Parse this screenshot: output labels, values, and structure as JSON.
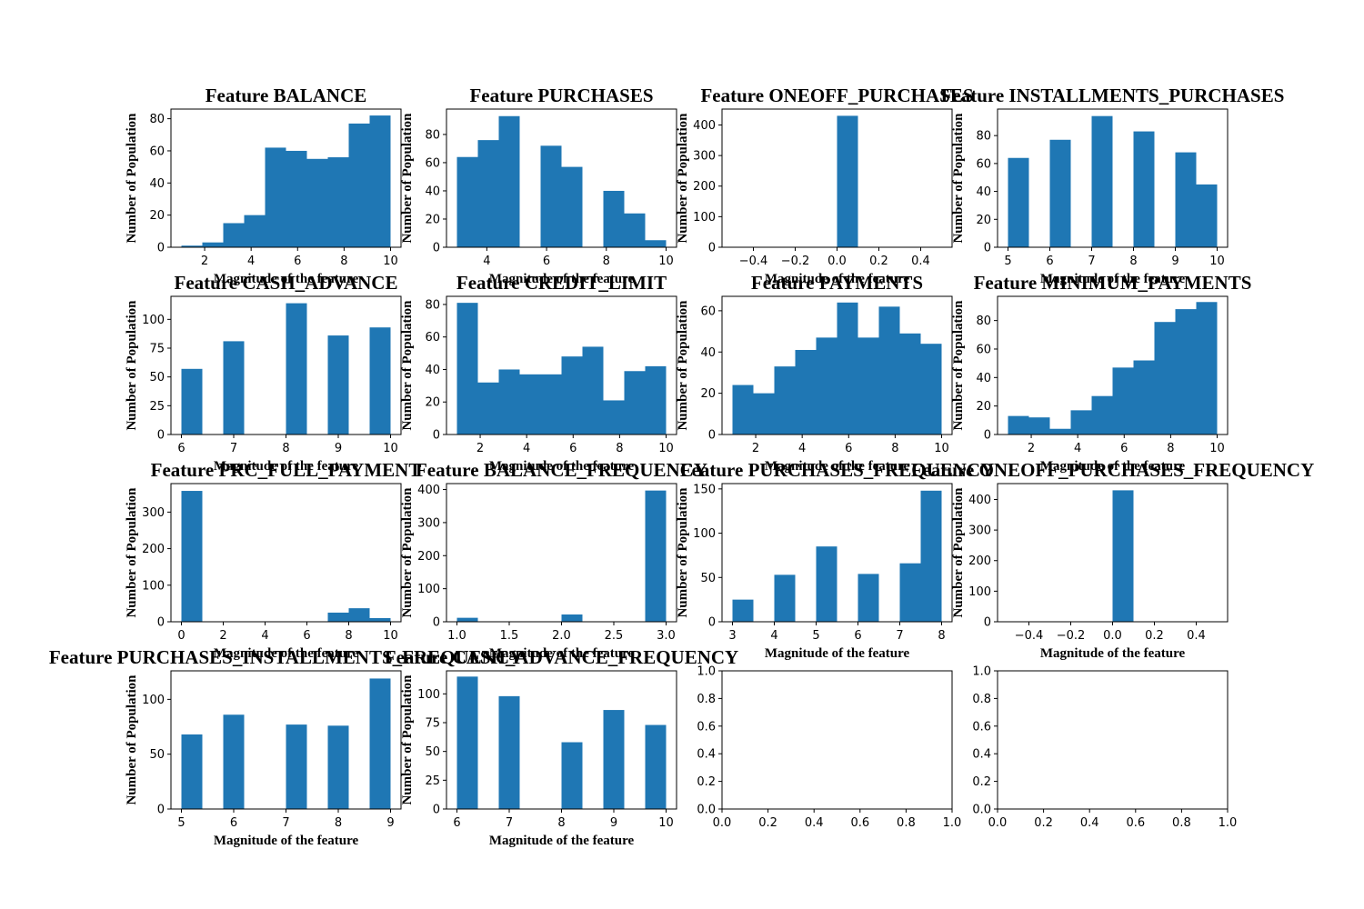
{
  "figure": {
    "bar_color": "#1f77b4",
    "background": "#ffffff"
  },
  "chart_data": [
    {
      "type": "bar",
      "title": "Feature BALANCE",
      "xlabel": "Magnitude of the feature",
      "ylabel": "Number of Population",
      "xlim": [
        0.55,
        10.45
      ],
      "ylim": [
        0,
        86
      ],
      "xticks": [
        2,
        4,
        6,
        8,
        10
      ],
      "yticks": [
        0,
        20,
        40,
        60,
        80
      ],
      "bars": [
        [
          1,
          1.9,
          1
        ],
        [
          1.9,
          2.8,
          3
        ],
        [
          2.8,
          3.7,
          15
        ],
        [
          3.7,
          4.6,
          20
        ],
        [
          4.6,
          5.5,
          62
        ],
        [
          5.5,
          6.4,
          60
        ],
        [
          6.4,
          7.3,
          55
        ],
        [
          7.3,
          8.2,
          56
        ],
        [
          8.2,
          9.1,
          77
        ],
        [
          9.1,
          10,
          82
        ]
      ]
    },
    {
      "type": "bar",
      "title": "Feature PURCHASES",
      "xlabel": "Magnitude of the feature",
      "ylabel": "Number of Population",
      "xlim": [
        2.65,
        10.35
      ],
      "ylim": [
        0,
        98
      ],
      "xticks": [
        4,
        6,
        8,
        10
      ],
      "yticks": [
        0,
        20,
        40,
        60,
        80
      ],
      "bars": [
        [
          3,
          3.7,
          64
        ],
        [
          3.7,
          4.4,
          76
        ],
        [
          4.4,
          5.1,
          93
        ],
        [
          5.1,
          5.8,
          0
        ],
        [
          5.8,
          6.5,
          72
        ],
        [
          6.5,
          7.2,
          57
        ],
        [
          7.2,
          7.9,
          0
        ],
        [
          7.9,
          8.6,
          40
        ],
        [
          8.6,
          9.3,
          24
        ],
        [
          9.3,
          10,
          5
        ]
      ]
    },
    {
      "type": "bar",
      "title": "Feature ONEOFF_PURCHASES",
      "xlabel": "Magnitude of the feature",
      "ylabel": "Number of Population",
      "xlim": [
        -0.55,
        0.55
      ],
      "ylim": [
        0,
        452
      ],
      "xticks": [
        -0.4,
        -0.2,
        0.0,
        0.2,
        0.4
      ],
      "yticks": [
        0,
        100,
        200,
        300,
        400
      ],
      "bars": [
        [
          0,
          0.1,
          430
        ]
      ]
    },
    {
      "type": "bar",
      "title": "Feature INSTALLMENTS_PURCHASES",
      "xlabel": "Magnitude of the feature",
      "ylabel": "Number of Population",
      "xlim": [
        4.75,
        10.25
      ],
      "ylim": [
        0,
        99
      ],
      "xticks": [
        5,
        6,
        7,
        8,
        9,
        10
      ],
      "yticks": [
        0,
        20,
        40,
        60,
        80
      ],
      "bars": [
        [
          5,
          5.5,
          64
        ],
        [
          5.5,
          6,
          0
        ],
        [
          6,
          6.5,
          77
        ],
        [
          6.5,
          7,
          0
        ],
        [
          7,
          7.5,
          94
        ],
        [
          7.5,
          8,
          0
        ],
        [
          8,
          8.5,
          83
        ],
        [
          8.5,
          9,
          0
        ],
        [
          9,
          9.5,
          68
        ],
        [
          9.5,
          10,
          45
        ]
      ]
    },
    {
      "type": "bar",
      "title": "Feature CASH_ADVANCE",
      "xlabel": "Magnitude of the feature",
      "ylabel": "Number of Population",
      "xlim": [
        5.8,
        10.2
      ],
      "ylim": [
        0,
        120
      ],
      "xticks": [
        6,
        7,
        8,
        9,
        10
      ],
      "yticks": [
        0,
        25,
        50,
        75,
        100
      ],
      "bars": [
        [
          6,
          6.4,
          57
        ],
        [
          6.4,
          6.8,
          0
        ],
        [
          6.8,
          7.2,
          81
        ],
        [
          7.2,
          7.6,
          0
        ],
        [
          7.6,
          8,
          0
        ],
        [
          8,
          8.4,
          114
        ],
        [
          8.4,
          8.8,
          0
        ],
        [
          8.8,
          9.2,
          86
        ],
        [
          9.2,
          9.6,
          0
        ],
        [
          9.6,
          10,
          93
        ]
      ]
    },
    {
      "type": "bar",
      "title": "Feature CREDIT_LIMIT",
      "xlabel": "Magnitude of the feature",
      "ylabel": "Number of Population",
      "xlim": [
        0.55,
        10.45
      ],
      "ylim": [
        0,
        85
      ],
      "xticks": [
        2,
        4,
        6,
        8,
        10
      ],
      "yticks": [
        0,
        20,
        40,
        60,
        80
      ],
      "bars": [
        [
          1,
          1.9,
          81
        ],
        [
          1.9,
          2.8,
          32
        ],
        [
          2.8,
          3.7,
          40
        ],
        [
          3.7,
          4.6,
          37
        ],
        [
          4.6,
          5.5,
          37
        ],
        [
          5.5,
          6.4,
          48
        ],
        [
          6.4,
          7.3,
          54
        ],
        [
          7.3,
          8.2,
          21
        ],
        [
          8.2,
          9.1,
          39
        ],
        [
          9.1,
          10,
          42
        ]
      ]
    },
    {
      "type": "bar",
      "title": "Feature PAYMENTS",
      "xlabel": "Magnitude of the feature",
      "ylabel": "Number of Population",
      "xlim": [
        0.55,
        10.45
      ],
      "ylim": [
        0,
        67
      ],
      "xticks": [
        2,
        4,
        6,
        8,
        10
      ],
      "yticks": [
        0,
        20,
        40,
        60
      ],
      "bars": [
        [
          1,
          1.9,
          24
        ],
        [
          1.9,
          2.8,
          20
        ],
        [
          2.8,
          3.7,
          33
        ],
        [
          3.7,
          4.6,
          41
        ],
        [
          4.6,
          5.5,
          47
        ],
        [
          5.5,
          6.4,
          64
        ],
        [
          6.4,
          7.3,
          47
        ],
        [
          7.3,
          8.2,
          62
        ],
        [
          8.2,
          9.1,
          49
        ],
        [
          9.1,
          10,
          44
        ]
      ]
    },
    {
      "type": "bar",
      "title": "Feature MINIMUM_PAYMENTS",
      "xlabel": "Magnitude of the feature",
      "ylabel": "Number of Population",
      "xlim": [
        0.55,
        10.45
      ],
      "ylim": [
        0,
        97
      ],
      "xticks": [
        2,
        4,
        6,
        8,
        10
      ],
      "yticks": [
        0,
        20,
        40,
        60,
        80
      ],
      "bars": [
        [
          1,
          1.9,
          13
        ],
        [
          1.9,
          2.8,
          12
        ],
        [
          2.8,
          3.7,
          4
        ],
        [
          3.7,
          4.6,
          17
        ],
        [
          4.6,
          5.5,
          27
        ],
        [
          5.5,
          6.4,
          47
        ],
        [
          6.4,
          7.3,
          52
        ],
        [
          7.3,
          8.2,
          79
        ],
        [
          8.2,
          9.1,
          88
        ],
        [
          9.1,
          10,
          93
        ]
      ]
    },
    {
      "type": "bar",
      "title": "Feature PRC_FULL_PAYMENT",
      "xlabel": "Magnitude of the feature",
      "ylabel": "Number of Population",
      "xlim": [
        -0.5,
        10.5
      ],
      "ylim": [
        0,
        378
      ],
      "xticks": [
        0,
        2,
        4,
        6,
        8,
        10
      ],
      "yticks": [
        0,
        100,
        200,
        300
      ],
      "bars": [
        [
          0,
          1,
          358
        ],
        [
          1,
          2,
          0
        ],
        [
          2,
          3,
          0
        ],
        [
          3,
          4,
          0
        ],
        [
          4,
          5,
          0
        ],
        [
          5,
          6,
          0
        ],
        [
          6,
          7,
          0
        ],
        [
          7,
          8,
          25
        ],
        [
          8,
          9,
          37
        ],
        [
          9,
          10,
          10
        ]
      ]
    },
    {
      "type": "bar",
      "title": "Feature BALANCE_FREQUENCY",
      "xlabel": "Magnitude of the feature",
      "ylabel": "Number of Population",
      "xlim": [
        0.9,
        3.1
      ],
      "ylim": [
        0,
        418
      ],
      "xticks": [
        1.0,
        1.5,
        2.0,
        2.5,
        3.0
      ],
      "yticks": [
        0,
        100,
        200,
        300,
        400
      ],
      "bars": [
        [
          1,
          1.2,
          12
        ],
        [
          1.2,
          1.4,
          0
        ],
        [
          1.4,
          1.6,
          0
        ],
        [
          1.6,
          1.8,
          0
        ],
        [
          1.8,
          2,
          0
        ],
        [
          2,
          2.2,
          22
        ],
        [
          2.2,
          2.4,
          0
        ],
        [
          2.4,
          2.6,
          0
        ],
        [
          2.6,
          2.8,
          0
        ],
        [
          2.8,
          3,
          397
        ]
      ]
    },
    {
      "type": "bar",
      "title": "Feature PURCHASES_FREQUENCY",
      "xlabel": "Magnitude of the feature",
      "ylabel": "Number of Population",
      "xlim": [
        2.75,
        8.25
      ],
      "ylim": [
        0,
        156
      ],
      "xticks": [
        3,
        4,
        5,
        6,
        7,
        8
      ],
      "yticks": [
        0,
        50,
        100,
        150
      ],
      "bars": [
        [
          3,
          3.5,
          25
        ],
        [
          3.5,
          4,
          0
        ],
        [
          4,
          4.5,
          53
        ],
        [
          4.5,
          5,
          0
        ],
        [
          5,
          5.5,
          85
        ],
        [
          5.5,
          6,
          0
        ],
        [
          6,
          6.5,
          54
        ],
        [
          6.5,
          7,
          0
        ],
        [
          7,
          7.5,
          66
        ],
        [
          7.5,
          8,
          148
        ]
      ]
    },
    {
      "type": "bar",
      "title": "Feature ONEOFF_PURCHASES_FREQUENCY",
      "xlabel": "Magnitude of the feature",
      "ylabel": "Number of Population",
      "xlim": [
        -0.55,
        0.55
      ],
      "ylim": [
        0,
        452
      ],
      "xticks": [
        -0.4,
        -0.2,
        0.0,
        0.2,
        0.4
      ],
      "yticks": [
        0,
        100,
        200,
        300,
        400
      ],
      "bars": [
        [
          0,
          0.1,
          430
        ]
      ]
    },
    {
      "type": "bar",
      "title": "Feature PURCHASES_INSTALLMENTS_FREQUENCY",
      "xlabel": "Magnitude of the feature",
      "ylabel": "Number of Population",
      "xlim": [
        4.8,
        9.2
      ],
      "ylim": [
        0,
        126
      ],
      "xticks": [
        5,
        6,
        7,
        8,
        9
      ],
      "yticks": [
        0,
        50,
        100
      ],
      "bars": [
        [
          5,
          5.4,
          68
        ],
        [
          5.4,
          5.8,
          0
        ],
        [
          5.8,
          6.2,
          86
        ],
        [
          6.2,
          6.6,
          0
        ],
        [
          6.6,
          7,
          0
        ],
        [
          7,
          7.4,
          77
        ],
        [
          7.4,
          7.8,
          0
        ],
        [
          7.8,
          8.2,
          76
        ],
        [
          8.2,
          8.6,
          0
        ],
        [
          8.6,
          9,
          119
        ]
      ]
    },
    {
      "type": "bar",
      "title": "Feature CASH_ADVANCE_FREQUENCY",
      "xlabel": "Magnitude of the feature",
      "ylabel": "Number of Population",
      "xlim": [
        5.8,
        10.2
      ],
      "ylim": [
        0,
        120
      ],
      "xticks": [
        6,
        7,
        8,
        9,
        10
      ],
      "yticks": [
        0,
        25,
        50,
        75,
        100
      ],
      "bars": [
        [
          6,
          6.4,
          115
        ],
        [
          6.4,
          6.8,
          0
        ],
        [
          6.8,
          7.2,
          98
        ],
        [
          7.2,
          7.6,
          0
        ],
        [
          7.6,
          8,
          0
        ],
        [
          8,
          8.4,
          58
        ],
        [
          8.4,
          8.8,
          0
        ],
        [
          8.8,
          9.2,
          86
        ],
        [
          9.2,
          9.6,
          0
        ],
        [
          9.6,
          10,
          73
        ]
      ]
    },
    {
      "type": "bar",
      "title": "",
      "xlabel": "",
      "ylabel": "",
      "xlim": [
        0,
        1
      ],
      "ylim": [
        0,
        1
      ],
      "xticks": [
        0.0,
        0.2,
        0.4,
        0.6,
        0.8,
        1.0
      ],
      "yticks": [
        0.0,
        0.2,
        0.4,
        0.6,
        0.8,
        1.0
      ],
      "bars": []
    },
    {
      "type": "bar",
      "title": "",
      "xlabel": "",
      "ylabel": "",
      "xlim": [
        0,
        1
      ],
      "ylim": [
        0,
        1
      ],
      "xticks": [
        0.0,
        0.2,
        0.4,
        0.6,
        0.8,
        1.0
      ],
      "yticks": [
        0.0,
        0.2,
        0.4,
        0.6,
        0.8,
        1.0
      ],
      "bars": []
    }
  ]
}
